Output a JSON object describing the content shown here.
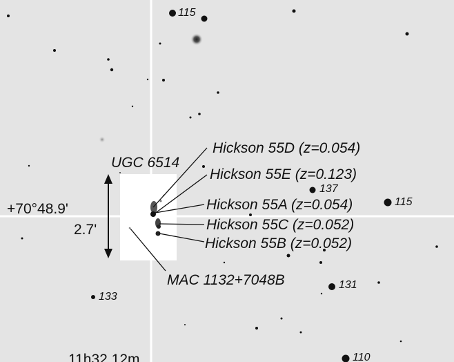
{
  "finder_chart": {
    "declination_label": "+70°48.9'",
    "scale_label": "2.7'",
    "right_ascension_label": "11h32.12m",
    "galaxy_labels": {
      "ugc": "UGC 6514",
      "h55d": "Hickson 55D (z=0.054)",
      "h55e": "Hickson 55E (z=0.123)",
      "h55a": "Hickson 55A (z=0.054)",
      "h55c": "Hickson 55C (z=0.052)",
      "h55b": "Hickson 55B (z=0.052)",
      "mac": "MAC 1132+7048B"
    },
    "star_magnitudes": {
      "top": "115",
      "right": "115",
      "center": "137",
      "left_low": "133",
      "right_low": "131",
      "bottom": "110"
    }
  }
}
